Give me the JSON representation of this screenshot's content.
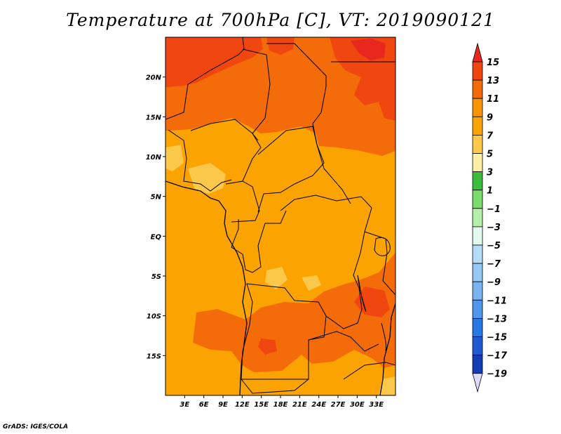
{
  "title": "Temperature at 700hPa [C], VT: 2019090121",
  "credit": "GrADS: IGES/COLA",
  "map": {
    "lon_range": [
      0,
      36
    ],
    "lat_range": [
      -20,
      25
    ],
    "lat_ticks": [
      {
        "label": "20N",
        "lat": 20
      },
      {
        "label": "15N",
        "lat": 15
      },
      {
        "label": "10N",
        "lat": 10
      },
      {
        "label": "5N",
        "lat": 5
      },
      {
        "label": "EQ",
        "lat": 0
      },
      {
        "label": "5S",
        "lat": -5
      },
      {
        "label": "10S",
        "lat": -10
      },
      {
        "label": "15S",
        "lat": -15
      }
    ],
    "lon_ticks": [
      {
        "label": "3E",
        "lon": 3
      },
      {
        "label": "6E",
        "lon": 6
      },
      {
        "label": "9E",
        "lon": 9
      },
      {
        "label": "12E",
        "lon": 12
      },
      {
        "label": "15E",
        "lon": 15
      },
      {
        "label": "18E",
        "lon": 18
      },
      {
        "label": "21E",
        "lon": 21
      },
      {
        "label": "24E",
        "lon": 24
      },
      {
        "label": "27E",
        "lon": 27
      },
      {
        "label": "30E",
        "lon": 30
      },
      {
        "label": "33E",
        "lon": 33
      }
    ]
  },
  "colorbar": {
    "levels": [
      {
        "label": "15",
        "color": "#e8281e"
      },
      {
        "label": "13",
        "color": "#f04610"
      },
      {
        "label": "11",
        "color": "#f46b0a"
      },
      {
        "label": "9",
        "color": "#f99406"
      },
      {
        "label": "7",
        "color": "#fba300"
      },
      {
        "label": "5",
        "color": "#fcc84a"
      },
      {
        "label": "3",
        "color": "#fdf0a6"
      },
      {
        "label": "1",
        "color": "#3cbc3d"
      },
      {
        "label": "-1",
        "color": "#79dc6c"
      },
      {
        "label": "-3",
        "color": "#b4f0a8"
      },
      {
        "label": "-5",
        "color": "#e2faf0"
      },
      {
        "label": "-7",
        "color": "#b4dcf8"
      },
      {
        "label": "-9",
        "color": "#96c8f6"
      },
      {
        "label": "-11",
        "color": "#78b4f0"
      },
      {
        "label": "-13",
        "color": "#5096ec"
      },
      {
        "label": "-15",
        "color": "#2878e4"
      },
      {
        "label": "-17",
        "color": "#1e5ad0"
      },
      {
        "label": "-19",
        "color": "#143cb4"
      }
    ],
    "bottom_color": "#0a1478",
    "below_min_color": "#dcdcfa"
  }
}
